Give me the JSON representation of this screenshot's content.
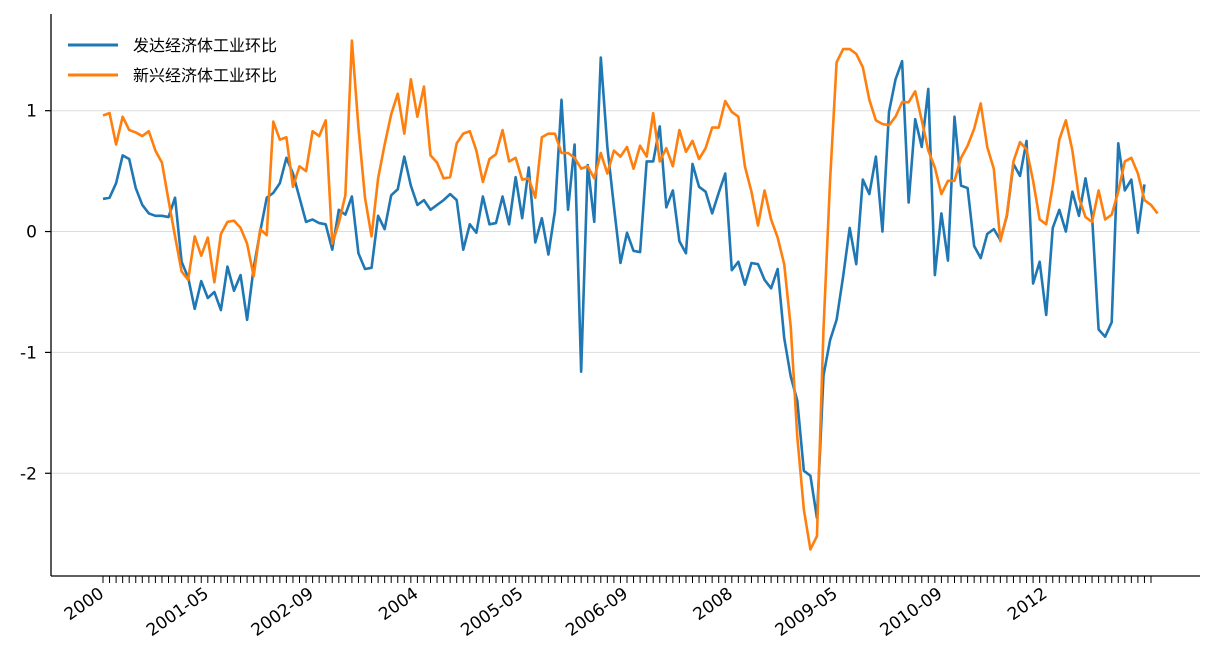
{
  "chart_data": {
    "type": "line",
    "title": "",
    "xlabel": "",
    "ylabel": "",
    "ylim": [
      -2.85,
      1.8
    ],
    "x_start": "2000-01",
    "n_points": 161,
    "y_ticks": [
      1,
      0,
      -1,
      -2
    ],
    "y_tick_labels": [
      "1",
      "0",
      "-1",
      "-2"
    ],
    "x_tick_labels": [
      "2000",
      "2001-05",
      "2002-09",
      "2004",
      "2005-05",
      "2006-09",
      "2008",
      "2009-05",
      "2010-09",
      "2012"
    ],
    "x_tick_label_index": [
      0,
      16,
      32,
      48,
      64,
      80,
      96,
      112,
      128,
      144
    ],
    "grid": "y",
    "legend": "top-left",
    "series": [
      {
        "name": "发达经济体工业环比",
        "color": "#1f77b4",
        "values": [
          0.27,
          0.28,
          0.4,
          0.63,
          0.6,
          0.36,
          0.22,
          0.15,
          0.13,
          0.13,
          0.12,
          0.28,
          -0.25,
          -0.38,
          -0.64,
          -0.41,
          -0.55,
          -0.5,
          -0.65,
          -0.29,
          -0.49,
          -0.36,
          -0.73,
          -0.3,
          0.0,
          0.28,
          0.32,
          0.4,
          0.61,
          0.48,
          0.28,
          0.08,
          0.1,
          0.07,
          0.06,
          -0.15,
          0.18,
          0.14,
          0.29,
          -0.18,
          -0.31,
          -0.3,
          0.13,
          0.02,
          0.3,
          0.35,
          0.62,
          0.38,
          0.22,
          0.26,
          0.18,
          0.22,
          0.26,
          0.31,
          0.26,
          -0.15,
          0.06,
          -0.01,
          0.29,
          0.06,
          0.07,
          0.29,
          0.06,
          0.45,
          0.11,
          0.53,
          -0.09,
          0.11,
          -0.19,
          0.17,
          1.09,
          0.18,
          0.72,
          -1.16,
          0.55,
          0.08,
          1.44,
          0.7,
          0.21,
          -0.26,
          -0.01,
          -0.16,
          -0.17,
          0.58,
          0.58,
          0.87,
          0.2,
          0.34,
          -0.08,
          -0.18,
          0.56,
          0.37,
          0.33,
          0.15,
          0.32,
          0.48,
          -0.32,
          -0.25,
          -0.44,
          -0.26,
          -0.27,
          -0.4,
          -0.47,
          -0.31,
          -0.88,
          -1.2,
          -1.4,
          -1.98,
          -2.02,
          -2.37,
          -1.19,
          -0.9,
          -0.73,
          -0.37,
          0.03,
          -0.27,
          0.43,
          0.31,
          0.62,
          0.0,
          0.99,
          1.26,
          1.41,
          0.24,
          0.93,
          0.7,
          1.18,
          -0.36,
          0.15,
          -0.24,
          0.95,
          0.38,
          0.36,
          -0.12,
          -0.22,
          -0.02,
          0.02,
          -0.07,
          0.13,
          0.56,
          0.46,
          0.75,
          -0.43,
          -0.25,
          -0.69,
          0.03,
          0.18,
          0.0,
          0.33,
          0.13,
          0.44,
          0.13,
          -0.81,
          -0.87,
          -0.75,
          0.73,
          0.34,
          0.43,
          -0.01,
          0.39
        ]
      },
      {
        "name": "新兴经济体工业环比",
        "color": "#ff7f0e",
        "values": [
          0.96,
          0.98,
          0.72,
          0.95,
          0.84,
          0.82,
          0.79,
          0.83,
          0.67,
          0.57,
          0.26,
          -0.04,
          -0.33,
          -0.4,
          -0.04,
          -0.2,
          -0.05,
          -0.42,
          -0.02,
          0.08,
          0.09,
          0.03,
          -0.1,
          -0.37,
          0.02,
          -0.03,
          0.91,
          0.76,
          0.78,
          0.37,
          0.54,
          0.5,
          0.83,
          0.79,
          0.92,
          -0.1,
          0.07,
          0.3,
          1.58,
          0.86,
          0.28,
          -0.04,
          0.44,
          0.72,
          0.97,
          1.14,
          0.81,
          1.26,
          0.95,
          1.2,
          0.63,
          0.57,
          0.44,
          0.45,
          0.73,
          0.81,
          0.83,
          0.67,
          0.41,
          0.6,
          0.64,
          0.84,
          0.58,
          0.61,
          0.43,
          0.44,
          0.28,
          0.78,
          0.81,
          0.81,
          0.65,
          0.65,
          0.61,
          0.52,
          0.54,
          0.44,
          0.65,
          0.48,
          0.67,
          0.62,
          0.7,
          0.52,
          0.71,
          0.62,
          0.98,
          0.58,
          0.69,
          0.54,
          0.84,
          0.66,
          0.75,
          0.6,
          0.69,
          0.86,
          0.86,
          1.08,
          0.99,
          0.95,
          0.54,
          0.33,
          0.05,
          0.34,
          0.1,
          -0.05,
          -0.27,
          -0.79,
          -1.7,
          -2.3,
          -2.63,
          -2.52,
          -0.81,
          0.42,
          1.4,
          1.51,
          1.51,
          1.47,
          1.36,
          1.09,
          0.92,
          0.89,
          0.88,
          0.95,
          1.07,
          1.07,
          1.16,
          0.92,
          0.67,
          0.53,
          0.31,
          0.42,
          0.42,
          0.61,
          0.71,
          0.85,
          1.06,
          0.7,
          0.52,
          -0.08,
          0.14,
          0.58,
          0.74,
          0.68,
          0.42,
          0.1,
          0.06,
          0.38,
          0.76,
          0.92,
          0.67,
          0.28,
          0.12,
          0.08,
          0.34,
          0.1,
          0.14,
          0.33,
          0.58,
          0.61,
          0.48,
          0.26,
          0.22,
          0.15
        ]
      }
    ]
  }
}
